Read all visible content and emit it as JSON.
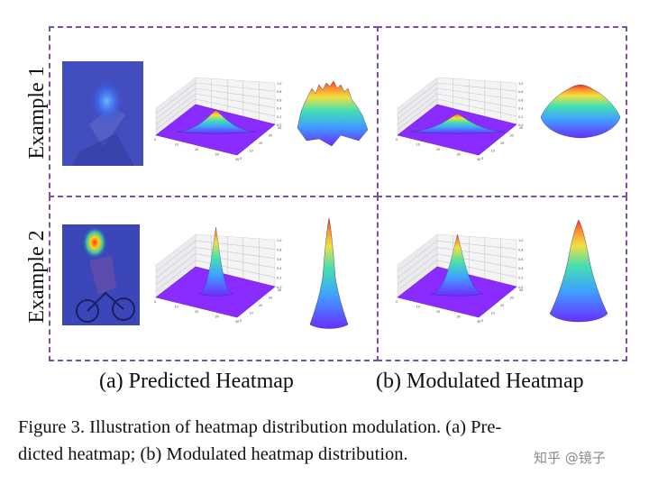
{
  "rows": [
    {
      "label": "Example 1"
    },
    {
      "label": "Example 2"
    }
  ],
  "subcaptions": {
    "a": "(a) Predicted Heatmap",
    "b": "(b) Modulated Heatmap"
  },
  "caption": {
    "line1": "Figure 3. Illustration of heatmap distribution modulation. (a) Pre-",
    "line2": "dicted heatmap; (b) Modulated heatmap distribution."
  },
  "watermark": "知乎 @镜子",
  "plot_ticks": {
    "z": [
      "1.0",
      "0.8",
      "0.6",
      "0.4",
      "0.2",
      "0.0"
    ],
    "x": [
      "0",
      "10",
      "20",
      "30",
      "40"
    ],
    "y": [
      "0",
      "10",
      "20",
      "30",
      "40"
    ]
  },
  "colors": {
    "dashed_border": "#7a4fb0",
    "photo_overlay": "#3b46c8",
    "floor": "#8a2cff"
  }
}
